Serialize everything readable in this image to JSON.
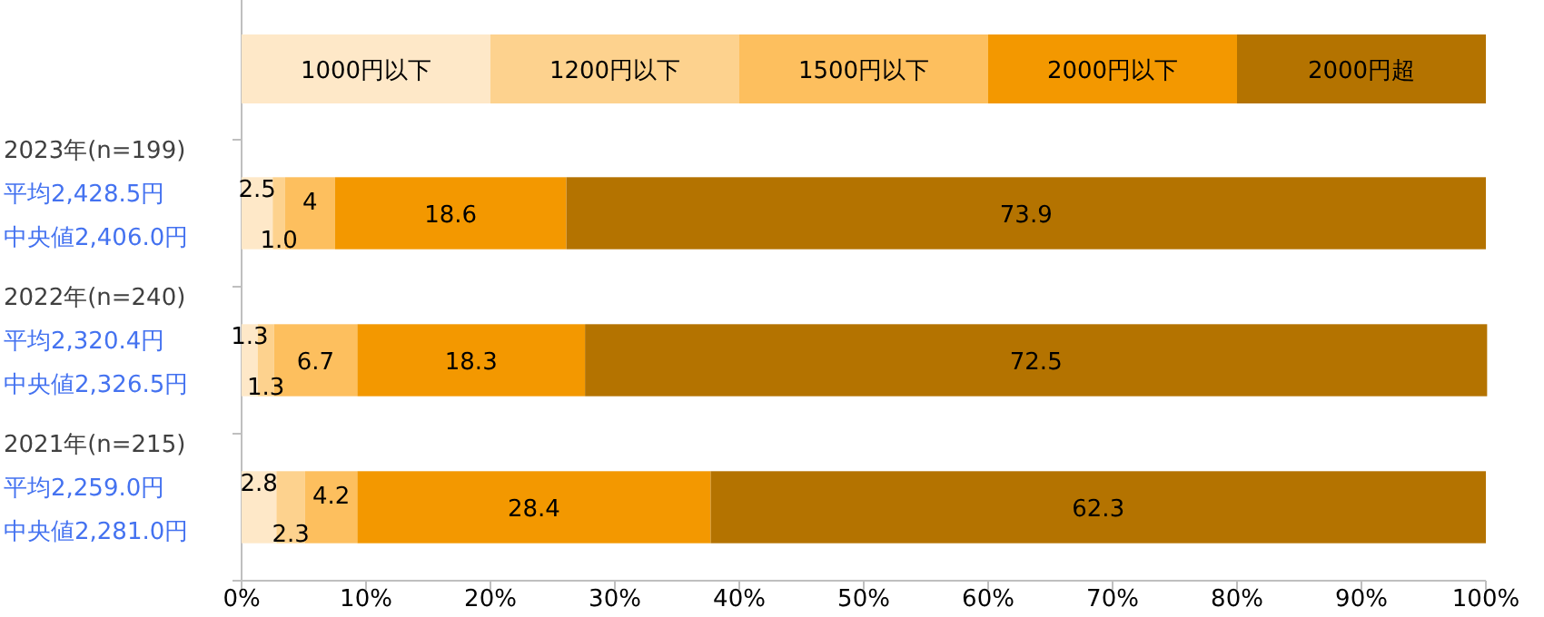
{
  "chart_data": {
    "type": "bar",
    "orientation": "horizontal",
    "stacked": true,
    "categories": [
      "2023年(n=199)",
      "2022年(n=240)",
      "2021年(n=215)"
    ],
    "series": [
      {
        "name": "1000円以下",
        "color": "#fee8c8",
        "values": [
          2.5,
          1.3,
          2.8
        ]
      },
      {
        "name": "1200円以下",
        "color": "#fdd28e",
        "values": [
          1.0,
          1.3,
          2.3
        ],
        "value_labels": [
          "1.0",
          "1.3",
          "2.3"
        ]
      },
      {
        "name": "1500円以下",
        "color": "#fdbf5e",
        "values": [
          4,
          6.7,
          4.2
        ]
      },
      {
        "name": "2000円以下",
        "color": "#f39800",
        "values": [
          18.6,
          18.3,
          28.4
        ]
      },
      {
        "name": "2000円超",
        "color": "#b47300",
        "values": [
          73.9,
          72.5,
          62.3
        ]
      }
    ],
    "xlim": [
      0,
      100
    ],
    "xticks": [
      {
        "value": 0,
        "label": "0%"
      },
      {
        "value": 10,
        "label": "10%"
      },
      {
        "value": 20,
        "label": "20%"
      },
      {
        "value": 30,
        "label": "30%"
      },
      {
        "value": 40,
        "label": "40%"
      },
      {
        "value": 50,
        "label": "50%"
      },
      {
        "value": 60,
        "label": "60%"
      },
      {
        "value": 70,
        "label": "70%"
      },
      {
        "value": 80,
        "label": "80%"
      },
      {
        "value": 90,
        "label": "90%"
      },
      {
        "value": 100,
        "label": "100%"
      }
    ],
    "data_labels": true,
    "legend": "top",
    "grid": false,
    "annotations": [
      "平均2,428.5円",
      "中央値2,406.0円",
      "平均2,320.4円",
      "中央値2,326.5円",
      "平均2,259.0円",
      "中央値2,281.0円"
    ]
  }
}
